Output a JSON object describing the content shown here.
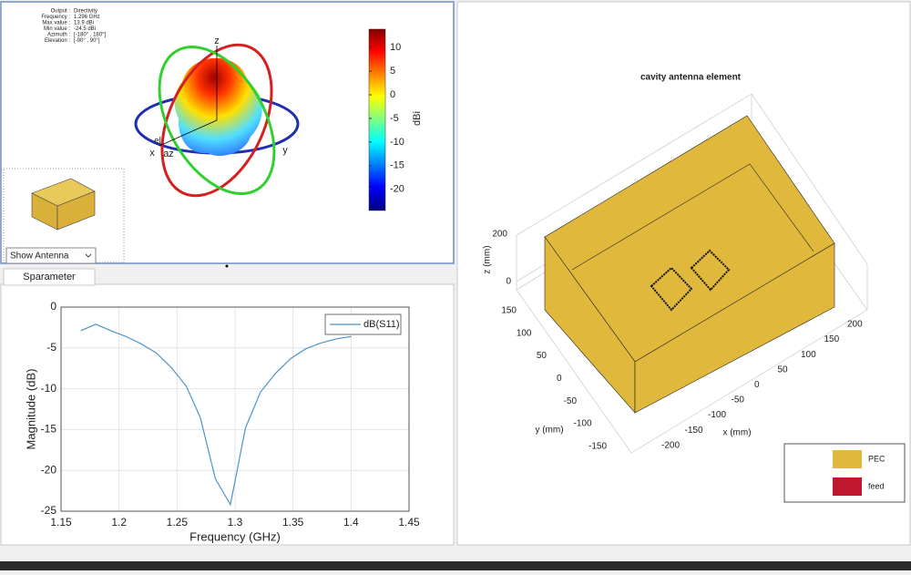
{
  "radiation_panel": {
    "info": [
      {
        "label": "Output :",
        "value": "Directivity"
      },
      {
        "label": "Frequency :",
        "value": "1.296 GHz"
      },
      {
        "label": "Max value :",
        "value": "13.9 dBi"
      },
      {
        "label": "Min value :",
        "value": "-24.5 dBi"
      },
      {
        "label": "Azimuth :",
        "value": "[-180° , 180°]"
      },
      {
        "label": "Elevation :",
        "value": "[-90° , 90°]"
      }
    ],
    "axis_labels": {
      "z": "z",
      "x": "x",
      "y": "y",
      "az": "az",
      "el": "el"
    },
    "colorbar": {
      "label": "dBi",
      "lim": [
        -24.5,
        13.9
      ],
      "ticks": [
        10,
        5,
        0,
        -5,
        -10,
        -15,
        -20
      ]
    },
    "dropdown": "Show Antenna"
  },
  "tab": "Sparameter",
  "chart_data": {
    "type": "line",
    "x": [
      1.167,
      1.18,
      1.193,
      1.206,
      1.219,
      1.232,
      1.245,
      1.258,
      1.27,
      1.283,
      1.296,
      1.309,
      1.322,
      1.335,
      1.348,
      1.361,
      1.374,
      1.387,
      1.4
    ],
    "series": [
      {
        "name": "dB(S11)",
        "color": "#4d94c8",
        "values": [
          -2.9,
          -2.1,
          -2.9,
          -3.6,
          -4.5,
          -5.6,
          -7.4,
          -9.7,
          -13.5,
          -21.0,
          -24.2,
          -14.8,
          -10.4,
          -8.1,
          -6.3,
          -5.1,
          -4.4,
          -3.9,
          -3.6
        ]
      }
    ],
    "xlabel": "Frequency (GHz)",
    "ylabel": "Magnitude (dB)",
    "xlim": [
      1.15,
      1.45
    ],
    "ylim": [
      -25,
      0
    ],
    "xticks": [
      1.15,
      1.2,
      1.25,
      1.3,
      1.35,
      1.4,
      1.45
    ],
    "yticks": [
      0,
      -5,
      -10,
      -15,
      -20,
      -25
    ],
    "grid": true,
    "legend": "upper right"
  },
  "geometry_panel": {
    "title": "cavity antenna element",
    "zlabel": "z (mm)",
    "ylabel": "y (mm)",
    "xlabel": "x (mm)",
    "zticks": [
      200,
      0
    ],
    "yticks": [
      150,
      100,
      50,
      0,
      -50,
      -100,
      -150
    ],
    "xticks": [
      200,
      150,
      100,
      50,
      0,
      -50,
      -100,
      -150,
      -200
    ],
    "legend": [
      {
        "name": "PEC",
        "color": "#e0b93c"
      },
      {
        "name": "feed",
        "color": "#c0182f"
      }
    ]
  }
}
